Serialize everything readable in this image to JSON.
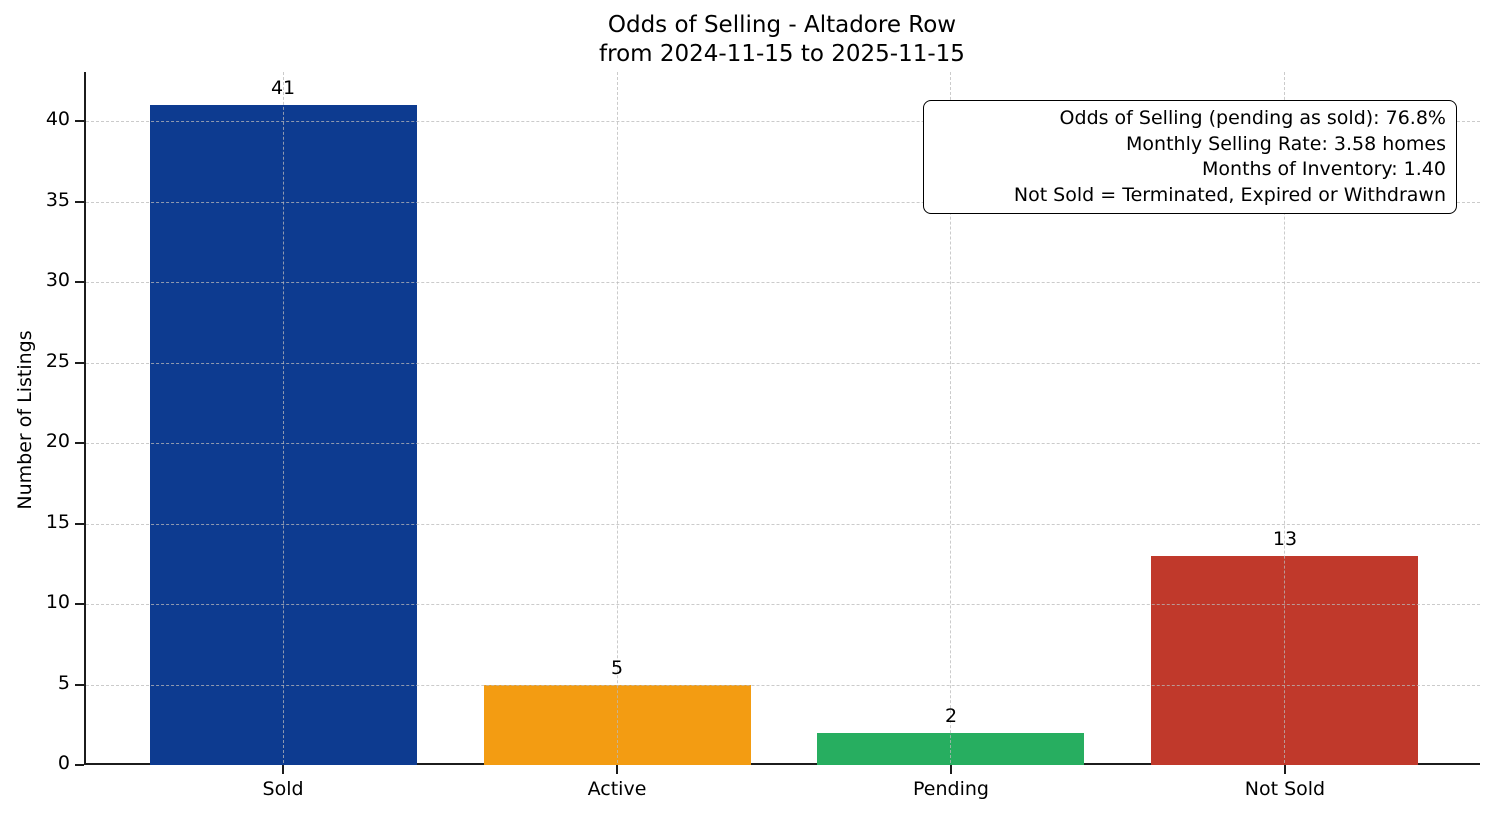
{
  "chart_data": {
    "type": "bar",
    "title_line1": "Odds of Selling - Altadore Row",
    "title_line2": "from 2024-11-15 to 2025-11-15",
    "categories": [
      "Sold",
      "Active",
      "Pending",
      "Not Sold"
    ],
    "values": [
      41,
      5,
      2,
      13
    ],
    "bar_colors": [
      "#0d3b90",
      "#f39c12",
      "#27ae60",
      "#c0392b"
    ],
    "ylabel": "Number of Listings",
    "xlabel": "",
    "yticks": [
      0,
      5,
      10,
      15,
      20,
      25,
      30,
      35,
      40
    ],
    "ylim": [
      0,
      43.05
    ],
    "grid": "dashed gridlines on both axes, light gray",
    "legend": "none",
    "stats": {
      "odds_of_selling_pending_as_sold_pct": 76.8,
      "monthly_selling_rate_homes": 3.58,
      "months_of_inventory": 1.4
    },
    "annotation_lines": [
      "Odds of Selling (pending as sold): 76.8%",
      "Monthly Selling Rate: 3.58 homes",
      "Months of Inventory: 1.40",
      "Not Sold = Terminated, Expired or Withdrawn"
    ]
  }
}
